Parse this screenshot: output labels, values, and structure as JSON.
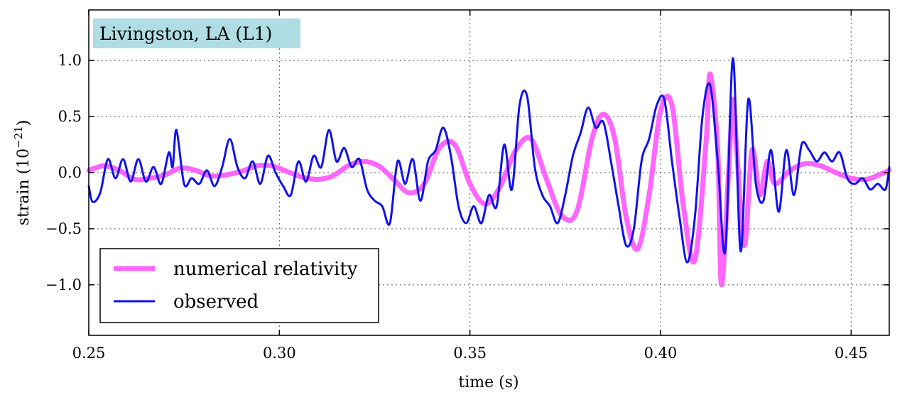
{
  "chart_data": {
    "type": "line",
    "annotation": "Livingston, LA (L1)",
    "annotation_color": "#b0dde4",
    "xlabel": "time (s)",
    "ylabel_main": "strain (10",
    "ylabel_exp": "−21",
    "ylabel_close": ")",
    "xlim": [
      0.25,
      0.46
    ],
    "ylim": [
      -1.45,
      1.45
    ],
    "xticks": [
      0.25,
      0.3,
      0.35,
      0.4,
      0.45
    ],
    "xtick_labels": [
      "0.25",
      "0.30",
      "0.35",
      "0.40",
      "0.45"
    ],
    "yticks": [
      1.0,
      0.5,
      0.0,
      -0.5,
      -1.0
    ],
    "ytick_labels": [
      "1.0",
      "0.5",
      "0.0",
      "−0.5",
      "−1.0"
    ],
    "grid": true,
    "legend_position": "bottom-left",
    "series": [
      {
        "name": "numerical relativity",
        "color": "#ff66ff",
        "points": [
          [
            0.25,
            0.02
          ],
          [
            0.254,
            0.06
          ],
          [
            0.258,
            0.02
          ],
          [
            0.262,
            -0.06
          ],
          [
            0.266,
            -0.05
          ],
          [
            0.27,
            -0.02
          ],
          [
            0.274,
            0.04
          ],
          [
            0.278,
            0.02
          ],
          [
            0.282,
            -0.03
          ],
          [
            0.286,
            -0.02
          ],
          [
            0.29,
            0.01
          ],
          [
            0.294,
            0.06
          ],
          [
            0.298,
            0.06
          ],
          [
            0.302,
            0.01
          ],
          [
            0.306,
            -0.04
          ],
          [
            0.31,
            -0.06
          ],
          [
            0.314,
            -0.03
          ],
          [
            0.318,
            0.06
          ],
          [
            0.322,
            0.1
          ],
          [
            0.326,
            0.06
          ],
          [
            0.33,
            -0.06
          ],
          [
            0.334,
            -0.18
          ],
          [
            0.338,
            -0.1
          ],
          [
            0.342,
            0.22
          ],
          [
            0.346,
            0.25
          ],
          [
            0.35,
            -0.1
          ],
          [
            0.354,
            -0.28
          ],
          [
            0.358,
            -0.12
          ],
          [
            0.362,
            0.2
          ],
          [
            0.366,
            0.3
          ],
          [
            0.37,
            -0.05
          ],
          [
            0.374,
            -0.38
          ],
          [
            0.378,
            -0.35
          ],
          [
            0.382,
            0.3
          ],
          [
            0.385,
            0.52
          ],
          [
            0.388,
            0.3
          ],
          [
            0.391,
            -0.4
          ],
          [
            0.394,
            -0.68
          ],
          [
            0.397,
            -0.2
          ],
          [
            0.4,
            0.55
          ],
          [
            0.403,
            0.6
          ],
          [
            0.406,
            -0.3
          ],
          [
            0.409,
            -0.78
          ],
          [
            0.412,
            0.3
          ],
          [
            0.413,
            0.88
          ],
          [
            0.415,
            0.2
          ],
          [
            0.416,
            -1.0
          ],
          [
            0.418,
            0.1
          ],
          [
            0.419,
            0.65
          ],
          [
            0.42,
            0.2
          ],
          [
            0.422,
            -0.65
          ],
          [
            0.424,
            0.2
          ],
          [
            0.426,
            -0.2
          ],
          [
            0.428,
            0.1
          ],
          [
            0.43,
            -0.1
          ],
          [
            0.434,
            0.02
          ],
          [
            0.438,
            0.08
          ],
          [
            0.442,
            0.06
          ],
          [
            0.446,
            0.0
          ],
          [
            0.45,
            -0.05
          ],
          [
            0.454,
            -0.06
          ],
          [
            0.458,
            -0.01
          ],
          [
            0.46,
            0.02
          ]
        ]
      },
      {
        "name": "observed",
        "color": "#1111ee",
        "points": [
          [
            0.25,
            -0.12
          ],
          [
            0.251,
            -0.26
          ],
          [
            0.253,
            -0.18
          ],
          [
            0.255,
            0.12
          ],
          [
            0.257,
            -0.05
          ],
          [
            0.259,
            0.12
          ],
          [
            0.261,
            -0.08
          ],
          [
            0.263,
            0.12
          ],
          [
            0.265,
            -0.08
          ],
          [
            0.267,
            0.05
          ],
          [
            0.269,
            -0.1
          ],
          [
            0.271,
            0.18
          ],
          [
            0.272,
            0.05
          ],
          [
            0.273,
            0.38
          ],
          [
            0.275,
            -0.1
          ],
          [
            0.277,
            -0.05
          ],
          [
            0.279,
            -0.1
          ],
          [
            0.281,
            0.02
          ],
          [
            0.283,
            -0.12
          ],
          [
            0.285,
            0.05
          ],
          [
            0.287,
            0.3
          ],
          [
            0.289,
            0.05
          ],
          [
            0.291,
            -0.05
          ],
          [
            0.293,
            0.1
          ],
          [
            0.295,
            -0.1
          ],
          [
            0.297,
            0.15
          ],
          [
            0.299,
            0.0
          ],
          [
            0.301,
            -0.12
          ],
          [
            0.303,
            -0.2
          ],
          [
            0.305,
            0.1
          ],
          [
            0.307,
            -0.08
          ],
          [
            0.309,
            0.15
          ],
          [
            0.311,
            0.05
          ],
          [
            0.313,
            0.38
          ],
          [
            0.315,
            0.1
          ],
          [
            0.317,
            0.22
          ],
          [
            0.319,
            0.05
          ],
          [
            0.321,
            0.12
          ],
          [
            0.323,
            -0.15
          ],
          [
            0.325,
            -0.25
          ],
          [
            0.327,
            -0.3
          ],
          [
            0.329,
            -0.45
          ],
          [
            0.331,
            0.1
          ],
          [
            0.333,
            -0.1
          ],
          [
            0.335,
            0.12
          ],
          [
            0.337,
            -0.25
          ],
          [
            0.339,
            0.1
          ],
          [
            0.341,
            0.2
          ],
          [
            0.343,
            0.4
          ],
          [
            0.345,
            0.15
          ],
          [
            0.347,
            -0.3
          ],
          [
            0.349,
            -0.45
          ],
          [
            0.351,
            -0.3
          ],
          [
            0.353,
            -0.45
          ],
          [
            0.355,
            -0.2
          ],
          [
            0.357,
            -0.3
          ],
          [
            0.359,
            0.25
          ],
          [
            0.361,
            -0.15
          ],
          [
            0.363,
            0.6
          ],
          [
            0.365,
            0.68
          ],
          [
            0.367,
            0.05
          ],
          [
            0.369,
            -0.2
          ],
          [
            0.371,
            -0.3
          ],
          [
            0.373,
            -0.45
          ],
          [
            0.375,
            -0.2
          ],
          [
            0.377,
            0.15
          ],
          [
            0.379,
            0.35
          ],
          [
            0.381,
            0.58
          ],
          [
            0.383,
            0.4
          ],
          [
            0.385,
            0.45
          ],
          [
            0.387,
            0.1
          ],
          [
            0.389,
            -0.3
          ],
          [
            0.391,
            -0.65
          ],
          [
            0.393,
            -0.5
          ],
          [
            0.395,
            0.1
          ],
          [
            0.397,
            0.3
          ],
          [
            0.399,
            0.6
          ],
          [
            0.401,
            0.65
          ],
          [
            0.403,
            0.1
          ],
          [
            0.405,
            -0.4
          ],
          [
            0.407,
            -0.8
          ],
          [
            0.409,
            -0.4
          ],
          [
            0.411,
            0.5
          ],
          [
            0.413,
            0.78
          ],
          [
            0.415,
            0.1
          ],
          [
            0.417,
            -0.7
          ],
          [
            0.419,
            1.02
          ],
          [
            0.421,
            -0.7
          ],
          [
            0.423,
            0.65
          ],
          [
            0.425,
            -0.1
          ],
          [
            0.427,
            -0.25
          ],
          [
            0.429,
            0.2
          ],
          [
            0.431,
            -0.35
          ],
          [
            0.433,
            0.2
          ],
          [
            0.435,
            -0.2
          ],
          [
            0.437,
            0.25
          ],
          [
            0.439,
            0.2
          ],
          [
            0.441,
            0.1
          ],
          [
            0.443,
            0.18
          ],
          [
            0.445,
            0.1
          ],
          [
            0.447,
            0.18
          ],
          [
            0.449,
            -0.05
          ],
          [
            0.451,
            -0.1
          ],
          [
            0.453,
            -0.05
          ],
          [
            0.455,
            -0.15
          ],
          [
            0.457,
            -0.1
          ],
          [
            0.459,
            -0.15
          ],
          [
            0.46,
            0.05
          ]
        ]
      }
    ]
  }
}
